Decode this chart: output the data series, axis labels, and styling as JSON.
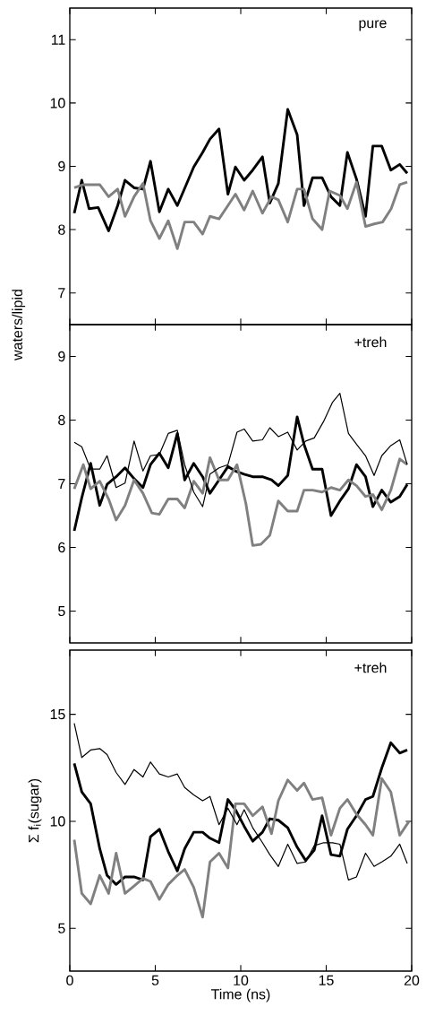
{
  "chart_data": [
    {
      "type": "line",
      "annotations": [
        "pure"
      ],
      "xlim": [
        0,
        20
      ],
      "xticks": [
        0,
        5,
        10,
        15,
        20
      ],
      "ylim": [
        6.5,
        11.5
      ],
      "yticks": [
        7,
        8,
        9,
        10,
        11
      ],
      "tick_labels": "y",
      "grid": false,
      "marker": "none",
      "line_style": "solid",
      "series": [
        {
          "color": "#000000",
          "x": [
            0.26,
            0.7,
            1.13,
            1.66,
            2.27,
            2.8,
            3.23,
            3.76,
            4.28,
            4.72,
            5.24,
            5.76,
            6.29,
            6.81,
            7.25,
            7.77,
            8.2,
            8.73,
            9.25,
            9.69,
            10.2,
            10.7,
            11.27,
            11.7,
            12.2,
            12.75,
            13.3,
            13.7,
            14.2,
            14.76,
            15.28,
            15.8,
            16.24,
            16.77,
            17.3,
            17.73,
            18.25,
            18.78,
            19.3,
            19.74
          ],
          "values": [
            8.26,
            8.78,
            8.33,
            8.35,
            7.98,
            8.38,
            8.78,
            8.66,
            8.64,
            9.08,
            8.28,
            8.64,
            8.38,
            8.71,
            8.99,
            9.22,
            9.43,
            9.59,
            8.56,
            8.99,
            8.78,
            8.94,
            9.15,
            8.42,
            8.73,
            9.9,
            9.5,
            8.38,
            8.82,
            8.82,
            8.52,
            8.38,
            9.22,
            8.8,
            8.21,
            9.32,
            9.32,
            8.94,
            9.03,
            8.89
          ]
        },
        {
          "color": "#808080",
          "x": [
            0.26,
            0.79,
            1.3,
            1.75,
            2.27,
            2.8,
            3.23,
            3.76,
            4.28,
            4.72,
            5.24,
            5.76,
            6.29,
            6.72,
            7.25,
            7.77,
            8.2,
            8.73,
            9.25,
            9.69,
            10.2,
            10.7,
            11.27,
            11.8,
            12.2,
            12.75,
            13.3,
            13.7,
            14.2,
            14.76,
            15.2,
            15.8,
            16.24,
            16.77,
            17.3,
            17.8,
            18.3,
            18.8,
            19.3,
            19.74
          ],
          "values": [
            8.66,
            8.71,
            8.71,
            8.71,
            8.52,
            8.64,
            8.21,
            8.52,
            8.73,
            8.14,
            7.86,
            8.14,
            7.7,
            8.12,
            8.12,
            7.93,
            8.21,
            8.17,
            8.38,
            8.56,
            8.31,
            8.61,
            8.26,
            8.52,
            8.47,
            8.12,
            8.64,
            8.64,
            8.17,
            8.0,
            8.61,
            8.54,
            8.33,
            8.75,
            8.05,
            8.09,
            8.12,
            8.33,
            8.71,
            8.75
          ]
        }
      ]
    },
    {
      "type": "line",
      "ylabel": "waters/lipid",
      "annotations": [
        "+treh"
      ],
      "xlim": [
        0,
        20
      ],
      "xticks": [
        0,
        5,
        10,
        15,
        20
      ],
      "ylim": [
        4.5,
        9.5
      ],
      "yticks": [
        5,
        6,
        7,
        8,
        9
      ],
      "tick_labels": "y",
      "grid": false,
      "marker": "none",
      "line_style": "solid",
      "series": [
        {
          "color": "#000000",
          "x": [
            0.26,
            0.7,
            1.22,
            1.75,
            2.18,
            2.71,
            3.23,
            3.76,
            4.28,
            4.72,
            5.24,
            5.76,
            6.29,
            6.72,
            7.25,
            7.77,
            8.2,
            8.73,
            9.25,
            9.69,
            10.2,
            10.7,
            11.27,
            11.8,
            12.2,
            12.75,
            13.3,
            13.7,
            14.2,
            14.76,
            15.28,
            15.8,
            16.3,
            16.77,
            17.3,
            17.73,
            18.25,
            18.78,
            19.3,
            19.74
          ],
          "values": [
            6.26,
            6.78,
            7.32,
            6.66,
            6.99,
            7.11,
            7.25,
            7.08,
            6.94,
            7.3,
            7.48,
            7.25,
            7.79,
            7.06,
            7.32,
            7.11,
            6.85,
            7.06,
            7.27,
            7.2,
            7.15,
            7.11,
            7.11,
            7.06,
            6.97,
            7.13,
            8.05,
            7.62,
            7.23,
            7.23,
            6.5,
            6.73,
            6.92,
            7.3,
            7.11,
            6.64,
            6.9,
            6.71,
            6.8,
            6.99
          ]
        },
        {
          "color": "#808080",
          "x": [
            0.26,
            0.79,
            1.22,
            1.75,
            2.27,
            2.71,
            3.23,
            3.76,
            4.28,
            4.8,
            5.24,
            5.76,
            6.29,
            6.72,
            7.25,
            7.77,
            8.2,
            8.73,
            9.25,
            9.78,
            10.3,
            10.7,
            11.18,
            11.7,
            12.2,
            12.75,
            13.3,
            13.7,
            14.2,
            14.76,
            15.28,
            15.8,
            16.3,
            16.77,
            17.3,
            17.73,
            18.25,
            18.78,
            19.3,
            19.74
          ],
          "values": [
            6.92,
            7.3,
            6.92,
            7.04,
            6.76,
            6.43,
            6.66,
            7.06,
            6.85,
            6.54,
            6.52,
            6.76,
            6.76,
            6.62,
            7.04,
            6.85,
            7.41,
            7.06,
            7.06,
            7.3,
            6.69,
            6.03,
            6.05,
            6.19,
            6.73,
            6.57,
            6.57,
            6.9,
            6.9,
            6.87,
            6.94,
            6.9,
            7.06,
            6.97,
            6.8,
            6.83,
            6.59,
            6.9,
            7.39,
            7.3
          ]
        },
        {
          "color": "#000000",
          "x": [
            0.26,
            0.7,
            1.22,
            1.75,
            2.18,
            2.71,
            3.23,
            3.76,
            4.28,
            4.72,
            5.24,
            5.76,
            6.29,
            6.72,
            7.25,
            7.77,
            8.2,
            8.73,
            9.25,
            9.78,
            10.2,
            10.7,
            11.27,
            11.7,
            12.2,
            12.75,
            13.3,
            13.8,
            14.3,
            14.85,
            15.37,
            15.8,
            16.3,
            16.77,
            17.3,
            17.8,
            18.25,
            18.78,
            19.3,
            19.74
          ],
          "values": [
            7.65,
            7.58,
            7.23,
            7.23,
            7.44,
            6.94,
            7.01,
            7.67,
            7.2,
            7.44,
            7.46,
            7.79,
            7.84,
            7.3,
            6.87,
            6.64,
            7.15,
            7.25,
            7.3,
            7.81,
            7.86,
            7.67,
            7.69,
            7.88,
            7.74,
            7.81,
            7.53,
            7.67,
            7.72,
            7.98,
            8.28,
            8.42,
            7.79,
            7.62,
            7.44,
            7.13,
            7.44,
            7.6,
            7.69,
            7.3
          ]
        }
      ]
    },
    {
      "type": "line",
      "xlabel": "Time (ns)",
      "ylabel": "Σ f$_{i}$(sugar)",
      "annotations": [
        "+treh"
      ],
      "xlim": [
        0,
        20
      ],
      "xticks": [
        0,
        5,
        10,
        15,
        20
      ],
      "ylim": [
        3,
        18
      ],
      "yticks": [
        5,
        10,
        15
      ],
      "grid": false,
      "marker": "none",
      "line_style": "solid",
      "series": [
        {
          "color": "#000000",
          "x": [
            0.26,
            0.7,
            1.22,
            1.75,
            2.18,
            2.71,
            3.23,
            3.76,
            4.28,
            4.72,
            5.24,
            5.76,
            6.29,
            6.72,
            7.25,
            7.77,
            8.2,
            8.73,
            9.25,
            9.69,
            10.2,
            10.7,
            11.27,
            11.7,
            12.2,
            12.75,
            13.3,
            13.8,
            14.3,
            14.76,
            15.28,
            15.8,
            16.24,
            16.77,
            17.3,
            17.73,
            18.25,
            18.78,
            19.3,
            19.74
          ],
          "values": [
            12.7,
            11.37,
            10.82,
            8.72,
            7.47,
            7.05,
            7.4,
            7.4,
            7.26,
            9.28,
            9.63,
            8.58,
            7.68,
            8.72,
            9.49,
            9.49,
            9.21,
            9.0,
            11.02,
            10.54,
            9.77,
            9.07,
            9.49,
            10.12,
            10.05,
            9.7,
            8.79,
            8.17,
            8.65,
            10.26,
            8.44,
            8.37,
            9.63,
            10.26,
            11.02,
            11.16,
            12.49,
            13.67,
            13.19,
            13.33
          ]
        },
        {
          "color": "#808080",
          "x": [
            0.26,
            0.7,
            1.22,
            1.75,
            2.27,
            2.71,
            3.23,
            3.76,
            4.28,
            4.72,
            5.24,
            5.76,
            6.29,
            6.72,
            7.25,
            7.77,
            8.2,
            8.73,
            9.25,
            9.69,
            10.2,
            10.7,
            11.27,
            11.8,
            12.2,
            12.75,
            13.3,
            13.7,
            14.2,
            14.76,
            15.28,
            15.8,
            16.24,
            16.77,
            17.3,
            17.73,
            18.25,
            18.78,
            19.3,
            19.83
          ],
          "values": [
            9.14,
            6.63,
            6.14,
            7.47,
            6.63,
            8.51,
            6.63,
            6.98,
            7.33,
            7.19,
            6.35,
            7.05,
            7.47,
            7.75,
            6.91,
            5.52,
            8.1,
            8.51,
            7.82,
            10.82,
            10.82,
            10.26,
            10.68,
            9.42,
            10.96,
            11.93,
            11.44,
            11.79,
            11.02,
            11.1,
            9.35,
            10.61,
            11.02,
            10.33,
            9.84,
            9.35,
            12.0,
            11.37,
            9.35,
            9.98
          ]
        },
        {
          "color": "#000000",
          "x": [
            0.26,
            0.7,
            1.22,
            1.75,
            2.18,
            2.71,
            3.23,
            3.76,
            4.28,
            4.72,
            5.24,
            5.76,
            6.29,
            6.72,
            7.25,
            7.77,
            8.2,
            8.73,
            9.25,
            9.78,
            10.2,
            10.7,
            11.27,
            11.7,
            12.2,
            12.75,
            13.3,
            13.8,
            14.3,
            14.85,
            15.37,
            15.8,
            16.3,
            16.77,
            17.3,
            17.8,
            18.25,
            18.78,
            19.3,
            19.74
          ],
          "values": [
            14.58,
            12.98,
            13.33,
            13.4,
            13.12,
            12.28,
            11.72,
            12.42,
            12.07,
            12.77,
            12.21,
            12.07,
            12.21,
            11.58,
            11.23,
            10.96,
            11.16,
            9.84,
            10.61,
            9.84,
            10.54,
            9.7,
            9.0,
            8.44,
            7.89,
            8.93,
            8.03,
            8.1,
            8.86,
            9.0,
            9.0,
            8.93,
            7.26,
            7.4,
            8.51,
            7.89,
            8.1,
            8.37,
            8.93,
            8.03
          ]
        }
      ]
    }
  ]
}
